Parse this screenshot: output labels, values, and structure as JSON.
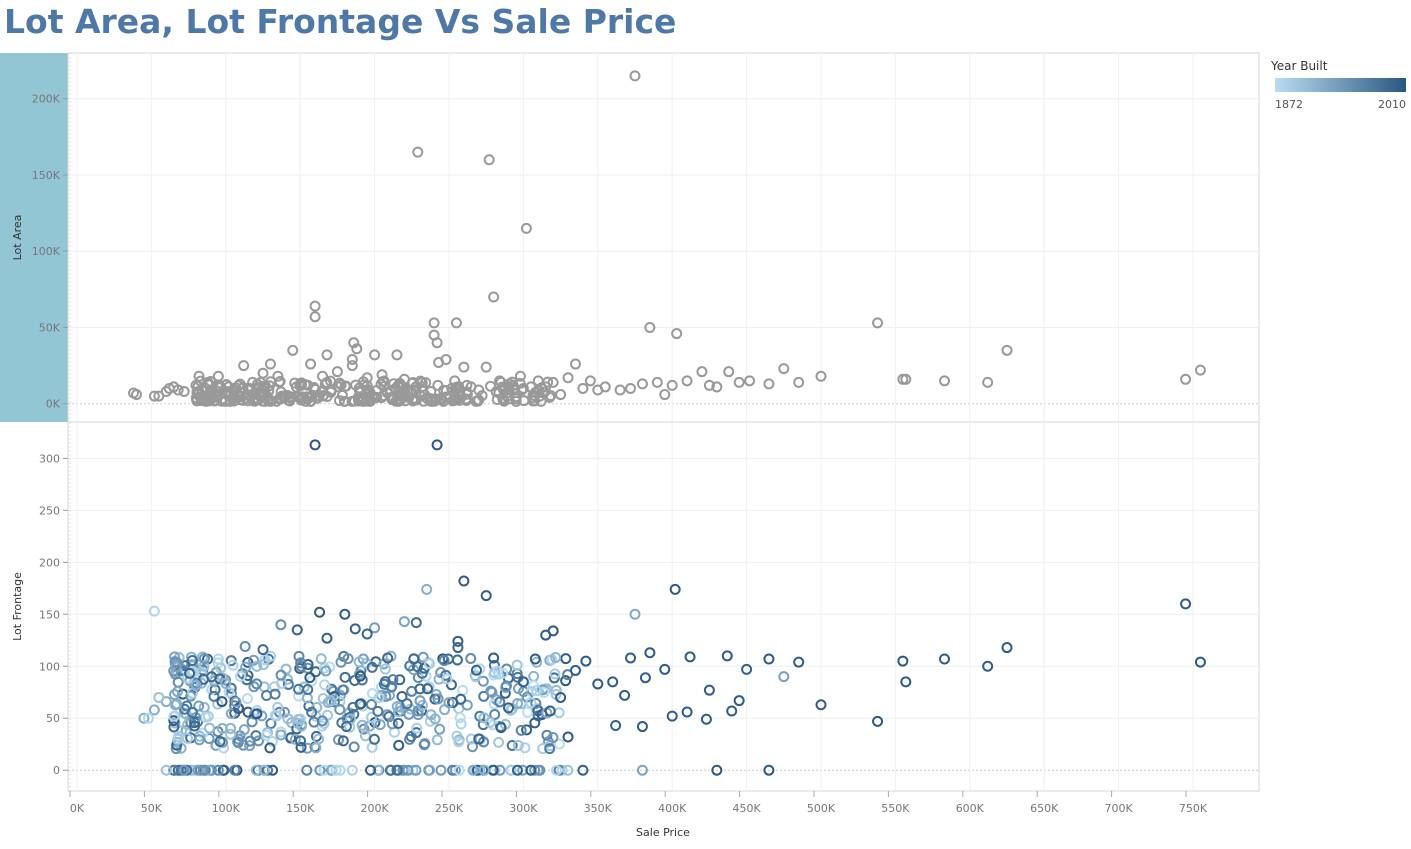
{
  "title": "Lot Area, Lot Frontage Vs Sale Price",
  "colors": {
    "title": "#4e79a7",
    "top_marks": "#999999",
    "highlight_band": "#92c6d4",
    "legend_low": "#b9ddf1",
    "legend_high": "#2a5783"
  },
  "legend": {
    "title": "Year Built",
    "min_label": "1872",
    "max_label": "2010"
  },
  "chart_data": [
    {
      "type": "scatter",
      "title": "",
      "xlabel": "Sale Price",
      "ylabel": "Lot Area",
      "xlim": [
        0,
        790000
      ],
      "ylim": [
        -12000,
        230000
      ],
      "x_ticks": [
        "0K",
        "50K",
        "100K",
        "150K",
        "200K",
        "250K",
        "300K",
        "350K",
        "400K",
        "450K",
        "500K",
        "550K",
        "600K",
        "650K",
        "700K",
        "750K"
      ],
      "y_ticks": [
        "0K",
        "50K",
        "100K",
        "150K",
        "200K"
      ],
      "grid": true,
      "points": [
        [
          375000,
          215000
        ],
        [
          229000,
          165000
        ],
        [
          277000,
          160000
        ],
        [
          302000,
          115000
        ],
        [
          280000,
          70000
        ],
        [
          160000,
          64000
        ],
        [
          160000,
          57000
        ],
        [
          240000,
          53000
        ],
        [
          255000,
          53000
        ],
        [
          385000,
          50000
        ],
        [
          403000,
          46000
        ],
        [
          240000,
          45000
        ],
        [
          242000,
          40000
        ],
        [
          186000,
          40000
        ],
        [
          188000,
          36000
        ],
        [
          145000,
          35000
        ],
        [
          625000,
          35000
        ],
        [
          538000,
          53000
        ],
        [
          168000,
          32000
        ],
        [
          200000,
          32000
        ],
        [
          215000,
          32000
        ],
        [
          185000,
          29000
        ],
        [
          248000,
          29000
        ],
        [
          243000,
          27000
        ],
        [
          130000,
          26000
        ],
        [
          157000,
          26000
        ],
        [
          185000,
          25000
        ],
        [
          112000,
          25000
        ],
        [
          260000,
          24000
        ],
        [
          275000,
          24000
        ],
        [
          335000,
          26000
        ],
        [
          420000,
          21000
        ],
        [
          438000,
          21000
        ],
        [
          475000,
          23000
        ],
        [
          500000,
          18000
        ],
        [
          555000,
          16000
        ],
        [
          557000,
          16000
        ],
        [
          583000,
          15000
        ],
        [
          612000,
          14000
        ],
        [
          745000,
          16000
        ],
        [
          755000,
          22000
        ],
        [
          38000,
          7000
        ],
        [
          40000,
          6000
        ],
        [
          52000,
          5000
        ],
        [
          55000,
          5000
        ],
        [
          60000,
          8000
        ],
        [
          62000,
          10000
        ],
        [
          65000,
          11000
        ],
        [
          68000,
          9000
        ],
        [
          72000,
          8000
        ],
        [
          80000,
          12000
        ],
        [
          82000,
          18000
        ],
        [
          88000,
          14000
        ],
        [
          95000,
          18000
        ],
        [
          102000,
          11000
        ],
        [
          118000,
          14000
        ],
        [
          125000,
          20000
        ],
        [
          135000,
          18000
        ],
        [
          150000,
          13000
        ],
        [
          165000,
          18000
        ],
        [
          175000,
          21000
        ],
        [
          195000,
          17000
        ],
        [
          205000,
          19000
        ],
        [
          220000,
          16000
        ],
        [
          232000,
          14000
        ],
        [
          262000,
          12000
        ],
        [
          285000,
          14000
        ],
        [
          298000,
          18000
        ],
        [
          310000,
          15000
        ],
        [
          320000,
          14000
        ],
        [
          330000,
          17000
        ],
        [
          345000,
          15000
        ],
        [
          355000,
          11000
        ],
        [
          365000,
          9000
        ],
        [
          380000,
          13000
        ],
        [
          390000,
          14000
        ],
        [
          395000,
          6000
        ],
        [
          410000,
          15000
        ],
        [
          425000,
          12000
        ],
        [
          445000,
          14000
        ],
        [
          452000,
          15000
        ],
        [
          465000,
          13000
        ],
        [
          485000,
          14000
        ],
        [
          325000,
          6000
        ],
        [
          305000,
          11000
        ],
        [
          270000,
          9000
        ],
        [
          290000,
          11000
        ],
        [
          350000,
          9000
        ],
        [
          372000,
          10000
        ],
        [
          400000,
          12000
        ],
        [
          430000,
          11000
        ],
        [
          340000,
          10000
        ],
        [
          315000,
          11000
        ],
        [
          300000,
          10000
        ]
      ],
      "dense_cluster": {
        "x_range": [
          80000,
          320000
        ],
        "y_range": [
          1500,
          15000
        ],
        "count": 320
      }
    },
    {
      "type": "scatter",
      "title": "",
      "xlabel": "Sale Price",
      "ylabel": "Lot Frontage",
      "xlim": [
        0,
        790000
      ],
      "ylim": [
        -20,
        335
      ],
      "x_ticks": [
        "0K",
        "50K",
        "100K",
        "150K",
        "200K",
        "250K",
        "300K",
        "350K",
        "400K",
        "450K",
        "500K",
        "550K",
        "600K",
        "650K",
        "700K",
        "750K"
      ],
      "y_ticks": [
        "0",
        "50",
        "100",
        "150",
        "200",
        "250",
        "300"
      ],
      "grid": true,
      "color_field": "Year Built",
      "points": [
        [
          160000,
          313,
          2008
        ],
        [
          242000,
          313,
          2008
        ],
        [
          52000,
          153,
          1880
        ],
        [
          235000,
          174,
          1920
        ],
        [
          260000,
          182,
          2005
        ],
        [
          275000,
          168,
          2004
        ],
        [
          375000,
          150,
          1925
        ],
        [
          402000,
          174,
          2006
        ],
        [
          745000,
          160,
          2004
        ],
        [
          755000,
          104,
          2008
        ],
        [
          625000,
          118,
          2006
        ],
        [
          612000,
          100,
          2005
        ],
        [
          583000,
          107,
          2005
        ],
        [
          555000,
          105,
          2006
        ],
        [
          557000,
          85,
          2004
        ],
        [
          538000,
          47,
          2007
        ],
        [
          500000,
          63,
          2003
        ],
        [
          475000,
          90,
          1935
        ],
        [
          465000,
          107,
          2006
        ],
        [
          485000,
          104,
          2005
        ],
        [
          450000,
          97,
          2000
        ],
        [
          445000,
          67,
          2005
        ],
        [
          440000,
          57,
          2004
        ],
        [
          425000,
          77,
          2003
        ],
        [
          423000,
          49,
          2004
        ],
        [
          437000,
          110,
          2006
        ],
        [
          430000,
          0,
          2007
        ],
        [
          465000,
          0,
          2007
        ],
        [
          380000,
          0,
          1930
        ],
        [
          340000,
          0,
          2000
        ],
        [
          380000,
          42,
          2003
        ],
        [
          382000,
          89,
          2003
        ],
        [
          395000,
          97,
          2005
        ],
        [
          410000,
          56,
          2004
        ],
        [
          400000,
          52,
          2003
        ],
        [
          412000,
          109,
          2006
        ],
        [
          385000,
          113,
          2006
        ],
        [
          362000,
          43,
          2000
        ],
        [
          330000,
          32,
          2004
        ],
        [
          325000,
          70,
          2001
        ],
        [
          318000,
          57,
          2000
        ],
        [
          320000,
          134,
          2006
        ],
        [
          315000,
          130,
          2005
        ],
        [
          308000,
          107,
          2004
        ],
        [
          296000,
          0,
          2000
        ],
        [
          305000,
          0,
          2002
        ],
        [
          280000,
          108,
          2003
        ],
        [
          256000,
          124,
          2002
        ],
        [
          256000,
          118,
          1995
        ],
        [
          228000,
          142,
          1990
        ],
        [
          220000,
          143,
          1930
        ],
        [
          200000,
          137,
          1935
        ],
        [
          195000,
          131,
          1995
        ],
        [
          187000,
          136,
          1998
        ],
        [
          180000,
          150,
          2003
        ],
        [
          163000,
          152,
          2005
        ],
        [
          168000,
          127,
          2001
        ],
        [
          148000,
          135,
          1998
        ],
        [
          137000,
          140,
          1950
        ],
        [
          113000,
          119,
          1955
        ],
        [
          125000,
          116,
          1990
        ],
        [
          95000,
          107,
          1880
        ],
        [
          60000,
          66,
          1920
        ],
        [
          55000,
          70,
          1900
        ],
        [
          52000,
          58,
          1920
        ],
        [
          45000,
          50,
          1920
        ],
        [
          48000,
          50,
          1880
        ],
        [
          60000,
          0,
          1900
        ],
        [
          72000,
          0,
          1940
        ],
        [
          85000,
          0,
          1950
        ],
        [
          95000,
          0,
          1955
        ],
        [
          342000,
          105,
          2004
        ],
        [
          350000,
          83,
          2003
        ],
        [
          360000,
          85,
          2003
        ],
        [
          372000,
          108,
          2004
        ],
        [
          368000,
          72,
          2004
        ],
        [
          335000,
          96,
          2002
        ],
        [
          300000,
          85,
          2001
        ],
        [
          290000,
          60,
          1999
        ],
        [
          285000,
          41,
          2000
        ],
        [
          270000,
          30,
          2000
        ],
        [
          250000,
          65,
          1930
        ]
      ],
      "dense_cluster": {
        "x_range": [
          65000,
          330000
        ],
        "y_range": [
          0,
          120
        ],
        "count": 520
      }
    }
  ]
}
